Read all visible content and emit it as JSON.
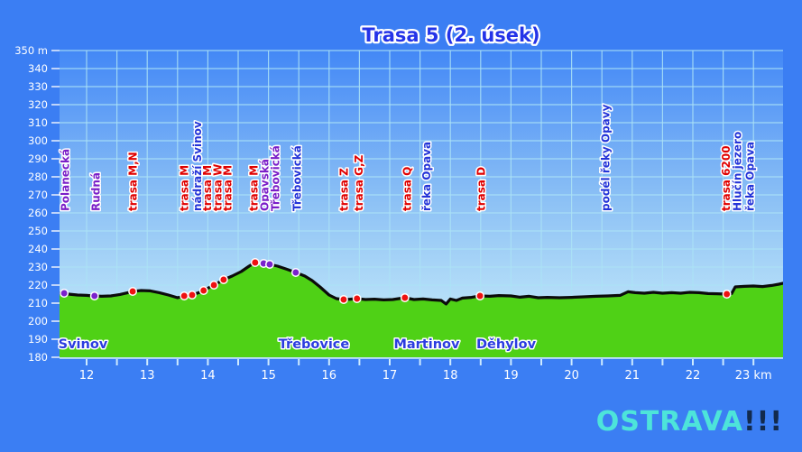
{
  "title": "Trasa 5 (2. úsek)",
  "logo": {
    "text": "OSTRAVA",
    "marks": "!!!"
  },
  "colors": {
    "background": "#3b7ef3",
    "sky_top": "#4388f6",
    "sky_bottom": "#cdf0fa",
    "grid": "#ace3f6",
    "terrain_fill": "#4fd116",
    "terrain_line": "#0b0b0b",
    "marker_red": "#ee1111",
    "marker_purple": "#7a22cc",
    "label_red": "#e00000",
    "label_purple": "#7a1ec8",
    "label_blue": "#2434d8",
    "place_blue": "#2b3ce0",
    "axis_text": "#ffffff",
    "axis_tick": "#cdeaff",
    "title_blue": "#2433e8",
    "logo_teal": "#4de4da",
    "logo_navy": "#122a4d"
  },
  "chart_data": {
    "type": "area",
    "title": "Trasa 5 (2. úsek)",
    "x_unit": "km",
    "y_unit": "m",
    "xlim": [
      11.55,
      23.49
    ],
    "ylim": [
      180,
      350
    ],
    "x_ticks": [
      12,
      13,
      14,
      15,
      16,
      17,
      18,
      19,
      20,
      21,
      22,
      23
    ],
    "x_minor_step": 0.5,
    "y_ticks": [
      180,
      190,
      200,
      210,
      220,
      230,
      240,
      250,
      260,
      270,
      280,
      290,
      300,
      310,
      320,
      330,
      340,
      350
    ],
    "y_top_label": "350 m",
    "x_last_label": "23 km",
    "profile": [
      [
        11.55,
        215.5
      ],
      [
        11.7,
        215
      ],
      [
        11.85,
        214.5
      ],
      [
        12.0,
        214.3
      ],
      [
        12.1,
        214
      ],
      [
        12.25,
        213.8
      ],
      [
        12.4,
        214
      ],
      [
        12.55,
        214.8
      ],
      [
        12.68,
        215.8
      ],
      [
        12.76,
        216.5
      ],
      [
        12.9,
        217
      ],
      [
        13.05,
        216.8
      ],
      [
        13.2,
        215.8
      ],
      [
        13.35,
        214.5
      ],
      [
        13.5,
        213
      ],
      [
        13.61,
        214
      ],
      [
        13.74,
        214.5
      ],
      [
        13.85,
        215.8
      ],
      [
        13.93,
        217
      ],
      [
        14.03,
        218.8
      ],
      [
        14.1,
        220
      ],
      [
        14.2,
        221.8
      ],
      [
        14.26,
        223
      ],
      [
        14.4,
        225
      ],
      [
        14.55,
        227.5
      ],
      [
        14.68,
        230.5
      ],
      [
        14.78,
        232.5
      ],
      [
        14.85,
        232.3
      ],
      [
        14.92,
        232
      ],
      [
        15.02,
        231.5
      ],
      [
        15.15,
        230.5
      ],
      [
        15.3,
        228.8
      ],
      [
        15.45,
        227
      ],
      [
        15.6,
        225
      ],
      [
        15.72,
        222.5
      ],
      [
        15.85,
        219
      ],
      [
        16.0,
        214.5
      ],
      [
        16.12,
        212.5
      ],
      [
        16.24,
        212
      ],
      [
        16.35,
        212.2
      ],
      [
        16.46,
        212.5
      ],
      [
        16.6,
        212
      ],
      [
        16.75,
        212.2
      ],
      [
        16.9,
        211.8
      ],
      [
        17.05,
        212
      ],
      [
        17.25,
        213
      ],
      [
        17.4,
        212
      ],
      [
        17.55,
        212.3
      ],
      [
        17.7,
        211.8
      ],
      [
        17.85,
        211.5
      ],
      [
        17.93,
        209.5
      ],
      [
        18.0,
        212.3
      ],
      [
        18.1,
        211.5
      ],
      [
        18.2,
        212.8
      ],
      [
        18.35,
        213.2
      ],
      [
        18.49,
        214
      ],
      [
        18.65,
        213.8
      ],
      [
        18.8,
        214.2
      ],
      [
        19.0,
        214
      ],
      [
        19.15,
        213.3
      ],
      [
        19.3,
        213.8
      ],
      [
        19.45,
        213
      ],
      [
        19.6,
        213.2
      ],
      [
        19.8,
        213
      ],
      [
        20.0,
        213.2
      ],
      [
        20.2,
        213.5
      ],
      [
        20.4,
        213.8
      ],
      [
        20.6,
        214
      ],
      [
        20.8,
        214.3
      ],
      [
        20.93,
        216.3
      ],
      [
        21.05,
        215.8
      ],
      [
        21.2,
        215.5
      ],
      [
        21.35,
        216
      ],
      [
        21.5,
        215.5
      ],
      [
        21.65,
        215.8
      ],
      [
        21.8,
        215.5
      ],
      [
        21.95,
        216
      ],
      [
        22.1,
        215.8
      ],
      [
        22.25,
        215.3
      ],
      [
        22.4,
        215.2
      ],
      [
        22.56,
        215
      ],
      [
        22.64,
        215.3
      ],
      [
        22.7,
        219
      ],
      [
        22.85,
        219.3
      ],
      [
        23.0,
        219.5
      ],
      [
        23.15,
        219.2
      ],
      [
        23.3,
        219.8
      ],
      [
        23.42,
        220.5
      ],
      [
        23.49,
        221
      ]
    ],
    "markers": [
      {
        "km": 11.63,
        "elev": 215.5,
        "color": "purple"
      },
      {
        "km": 12.13,
        "elev": 214,
        "color": "purple"
      },
      {
        "km": 12.76,
        "elev": 216.5,
        "color": "red"
      },
      {
        "km": 13.61,
        "elev": 214,
        "color": "red"
      },
      {
        "km": 13.74,
        "elev": 214.5,
        "color": "red"
      },
      {
        "km": 13.93,
        "elev": 217,
        "color": "red"
      },
      {
        "km": 14.1,
        "elev": 220,
        "color": "red"
      },
      {
        "km": 14.26,
        "elev": 223,
        "color": "red"
      },
      {
        "km": 14.78,
        "elev": 232.5,
        "color": "red"
      },
      {
        "km": 14.92,
        "elev": 232,
        "color": "purple"
      },
      {
        "km": 15.02,
        "elev": 231.5,
        "color": "purple"
      },
      {
        "km": 15.45,
        "elev": 227,
        "color": "purple"
      },
      {
        "km": 16.24,
        "elev": 212,
        "color": "red"
      },
      {
        "km": 16.46,
        "elev": 212.5,
        "color": "red"
      },
      {
        "km": 17.25,
        "elev": 213,
        "color": "red"
      },
      {
        "km": 18.49,
        "elev": 214,
        "color": "red"
      },
      {
        "km": 22.56,
        "elev": 215,
        "color": "red"
      }
    ],
    "waypoints": [
      {
        "km": 11.64,
        "label": "Polanecká",
        "color": "purple"
      },
      {
        "km": 12.15,
        "label": "Rudná",
        "color": "purple"
      },
      {
        "km": 12.76,
        "label": "trasa M,N",
        "color": "red"
      },
      {
        "km": 13.61,
        "label": "trasa M",
        "color": "red"
      },
      {
        "km": 13.82,
        "label": "nádraží Svinov",
        "color": "blue"
      },
      {
        "km": 13.99,
        "label": "trasa M",
        "color": "red"
      },
      {
        "km": 14.16,
        "label": "trasa W",
        "color": "red"
      },
      {
        "km": 14.32,
        "label": "trasa M",
        "color": "red"
      },
      {
        "km": 14.75,
        "label": "trasa M",
        "color": "red"
      },
      {
        "km": 14.93,
        "label": "Opavská",
        "color": "purple"
      },
      {
        "km": 15.11,
        "label": "Třebovická",
        "color": "purple"
      },
      {
        "km": 15.47,
        "label": "Třebovická",
        "color": "blue"
      },
      {
        "km": 16.24,
        "label": "trasa Z",
        "color": "red"
      },
      {
        "km": 16.49,
        "label": "trasa G,Z",
        "color": "red"
      },
      {
        "km": 17.28,
        "label": "trasa Q",
        "color": "red"
      },
      {
        "km": 17.6,
        "label": "řeka Opava",
        "color": "blue"
      },
      {
        "km": 18.5,
        "label": "trasa D",
        "color": "red"
      },
      {
        "km": 20.56,
        "label": "podél řeky Opavy",
        "color": "blue"
      },
      {
        "km": 22.54,
        "label": "trasa 6200",
        "color": "red"
      },
      {
        "km": 22.73,
        "label": "Hlučín jezero",
        "color": "blue"
      },
      {
        "km": 22.94,
        "label": "řeka Opava",
        "color": "blue"
      }
    ],
    "places": [
      {
        "km": 11.94,
        "label": "Svinov"
      },
      {
        "km": 15.75,
        "label": "Třebovice"
      },
      {
        "km": 17.61,
        "label": "Martinov"
      },
      {
        "km": 18.92,
        "label": "Děhylov"
      }
    ]
  }
}
